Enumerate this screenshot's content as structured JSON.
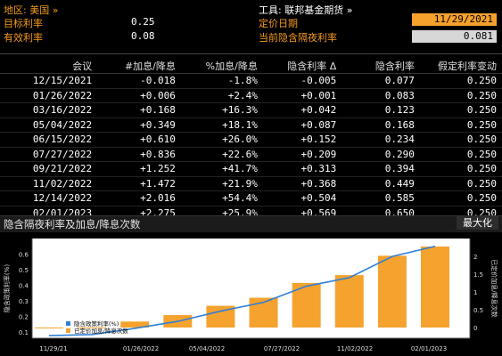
{
  "header": {
    "region_label": "地区: 美国 »",
    "target_rate_label": "目标利率",
    "target_rate_value": "0.25",
    "effective_rate_label": "有效利率",
    "effective_rate_value": "0.08",
    "tool_label": "工具: 联邦基金期货 »",
    "pricing_date_label": "定价日期",
    "pricing_date_value": "11/29/2021",
    "implied_rate_label": "当前隐含隔夜利率",
    "implied_rate_value": "0.081"
  },
  "table": {
    "columns": [
      "会议",
      "#加息/降息",
      "%加息/降息",
      "隐含利率 Δ",
      "隐含利率",
      "假定利率变动"
    ],
    "rows": [
      [
        "12/15/2021",
        "-0.018",
        "-1.8%",
        "-0.005",
        "0.077",
        "0.250"
      ],
      [
        "01/26/2022",
        "+0.006",
        "+2.4%",
        "+0.001",
        "0.083",
        "0.250"
      ],
      [
        "03/16/2022",
        "+0.168",
        "+16.3%",
        "+0.042",
        "0.123",
        "0.250"
      ],
      [
        "05/04/2022",
        "+0.349",
        "+18.1%",
        "+0.087",
        "0.168",
        "0.250"
      ],
      [
        "06/15/2022",
        "+0.610",
        "+26.0%",
        "+0.152",
        "0.234",
        "0.250"
      ],
      [
        "07/27/2022",
        "+0.836",
        "+22.6%",
        "+0.209",
        "0.290",
        "0.250"
      ],
      [
        "09/21/2022",
        "+1.252",
        "+41.7%",
        "+0.313",
        "0.394",
        "0.250"
      ],
      [
        "11/02/2022",
        "+1.472",
        "+21.9%",
        "+0.368",
        "0.449",
        "0.250"
      ],
      [
        "12/14/2022",
        "+2.016",
        "+54.4%",
        "+0.504",
        "0.585",
        "0.250"
      ],
      [
        "02/01/2023",
        "+2.275",
        "+25.9%",
        "+0.569",
        "0.650",
        "0.250"
      ]
    ]
  },
  "chart_panel": {
    "title": "隐含隔夜利率及加息/降息次数",
    "maximize_label": "最大化"
  },
  "chart_data": {
    "type": "bar",
    "categories": [
      "12/15/2021",
      "01/26/2022",
      "03/16/2022",
      "05/04/2022",
      "06/15/2022",
      "07/27/2022",
      "09/21/2022",
      "11/02/2022",
      "12/14/2022",
      "02/01/2023"
    ],
    "series": [
      {
        "name": "隐含政策利率(%)",
        "type": "line",
        "axis": "left",
        "values": [
          0.077,
          0.083,
          0.123,
          0.168,
          0.234,
          0.29,
          0.394,
          0.449,
          0.585,
          0.65
        ]
      },
      {
        "name": "已定价加息/降息次数",
        "type": "bar",
        "axis": "right",
        "values": [
          -0.018,
          0.006,
          0.168,
          0.349,
          0.61,
          0.836,
          1.252,
          1.472,
          2.016,
          2.275
        ]
      }
    ],
    "ylabel_left": "隐含政策利率(%)",
    "ylabel_right": "已定价加息/降息次数",
    "ylim_left": [
      0.06,
      0.7
    ],
    "ylim_right": [
      -0.3,
      2.5
    ],
    "yticks_left": [
      "0.1",
      "0.2",
      "0.3",
      "0.4",
      "0.5",
      "0.6"
    ],
    "yticks_right": [
      "0",
      "0.5",
      "1",
      "1.5",
      "2"
    ],
    "xticks": [
      "11/29/21",
      "01/26/2022",
      "05/04/2022",
      "07/27/2022",
      "11/02/2022",
      "02/01/2023"
    ],
    "colors": {
      "line": "#2f7fd6",
      "bar": "#f5a22e"
    },
    "legend_position": "bottom-left"
  }
}
